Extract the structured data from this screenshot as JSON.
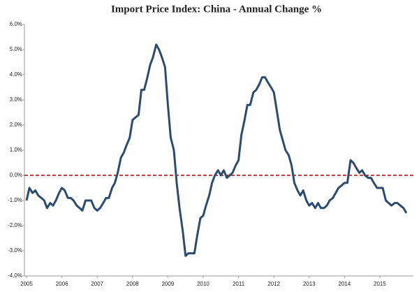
{
  "chart_data": {
    "type": "line",
    "title": "Import Price Index: China - Annual Change %",
    "x": [
      2005,
      2005.08,
      2005.17,
      2005.25,
      2005.33,
      2005.42,
      2005.5,
      2005.58,
      2005.67,
      2005.75,
      2005.83,
      2005.92,
      2006,
      2006.08,
      2006.17,
      2006.25,
      2006.33,
      2006.42,
      2006.5,
      2006.58,
      2006.67,
      2006.75,
      2006.83,
      2006.92,
      2007,
      2007.08,
      2007.17,
      2007.25,
      2007.33,
      2007.42,
      2007.5,
      2007.58,
      2007.67,
      2007.75,
      2007.83,
      2007.92,
      2008,
      2008.08,
      2008.17,
      2008.25,
      2008.33,
      2008.42,
      2008.5,
      2008.58,
      2008.67,
      2008.75,
      2008.83,
      2008.92,
      2009,
      2009.08,
      2009.17,
      2009.25,
      2009.33,
      2009.42,
      2009.5,
      2009.58,
      2009.67,
      2009.75,
      2009.83,
      2009.92,
      2010,
      2010.08,
      2010.17,
      2010.25,
      2010.33,
      2010.42,
      2010.5,
      2010.58,
      2010.67,
      2010.75,
      2010.83,
      2010.92,
      2011,
      2011.08,
      2011.17,
      2011.25,
      2011.33,
      2011.42,
      2011.5,
      2011.58,
      2011.67,
      2011.75,
      2011.83,
      2011.92,
      2012,
      2012.08,
      2012.17,
      2012.25,
      2012.33,
      2012.42,
      2012.5,
      2012.58,
      2012.67,
      2012.75,
      2012.83,
      2012.92,
      2013,
      2013.08,
      2013.17,
      2013.25,
      2013.33,
      2013.42,
      2013.5,
      2013.58,
      2013.67,
      2013.75,
      2013.83,
      2013.92,
      2014,
      2014.08,
      2014.17,
      2014.25,
      2014.33,
      2014.42,
      2014.5,
      2014.58,
      2014.67,
      2014.75,
      2014.83,
      2014.92,
      2015,
      2015.08,
      2015.17,
      2015.25,
      2015.33,
      2015.42,
      2015.5,
      2015.58,
      2015.67,
      2015.75
    ],
    "series": [
      {
        "name": "Import Price Index: China",
        "color": "#2b4b6f",
        "values": [
          -1.0,
          -0.5,
          -0.7,
          -0.6,
          -0.8,
          -0.9,
          -1.0,
          -1.3,
          -1.1,
          -1.2,
          -1.0,
          -0.7,
          -0.5,
          -0.6,
          -0.9,
          -0.9,
          -1.0,
          -1.2,
          -1.3,
          -1.4,
          -1.0,
          -1.0,
          -1.0,
          -1.3,
          -1.4,
          -1.3,
          -1.1,
          -0.9,
          -0.9,
          -0.5,
          -0.3,
          0.1,
          0.7,
          0.9,
          1.2,
          1.5,
          2.2,
          2.3,
          2.4,
          3.4,
          3.4,
          3.9,
          4.4,
          4.7,
          5.2,
          5.0,
          4.7,
          4.3,
          2.8,
          1.5,
          1.0,
          -0.3,
          -1.3,
          -2.2,
          -3.2,
          -3.1,
          -3.1,
          -3.1,
          -2.4,
          -1.7,
          -1.6,
          -1.2,
          -0.8,
          -0.3,
          0.0,
          0.2,
          0.0,
          0.2,
          -0.1,
          0.0,
          0.1,
          0.4,
          0.6,
          1.6,
          2.2,
          2.8,
          2.8,
          3.3,
          3.4,
          3.6,
          3.9,
          3.9,
          3.7,
          3.5,
          3.3,
          2.6,
          1.8,
          1.4,
          1.0,
          0.8,
          0.4,
          -0.3,
          -0.6,
          -0.8,
          -0.6,
          -1.0,
          -1.2,
          -1.1,
          -1.3,
          -1.1,
          -1.3,
          -1.3,
          -1.2,
          -1.0,
          -0.9,
          -0.7,
          -0.5,
          -0.4,
          -0.3,
          -0.3,
          0.6,
          0.5,
          0.3,
          0.1,
          0.2,
          0.0,
          -0.1,
          -0.1,
          -0.3,
          -0.5,
          -0.5,
          -0.5,
          -1.0,
          -1.1,
          -1.2,
          -1.1,
          -1.1,
          -1.2,
          -1.3,
          -1.5
        ]
      }
    ],
    "xlim": [
      2004.94,
      2015.95
    ],
    "xticks": [
      2005,
      2006,
      2007,
      2008,
      2009,
      2010,
      2011,
      2012,
      2013,
      2014,
      2015
    ],
    "ylim": [
      -4,
      6
    ],
    "yticks": [
      {
        "value": 6,
        "label": "6.0%"
      },
      {
        "value": 5,
        "label": "5.0%"
      },
      {
        "value": 4,
        "label": "4.0%"
      },
      {
        "value": 3,
        "label": "3.0%"
      },
      {
        "value": 2,
        "label": "2.0%"
      },
      {
        "value": 1,
        "label": "1.0%"
      },
      {
        "value": 0,
        "label": "0.0%"
      },
      {
        "value": -1,
        "label": "-1.0%"
      },
      {
        "value": -2,
        "label": "-2.0%"
      },
      {
        "value": -3,
        "label": "-3.0%"
      },
      {
        "value": -4,
        "label": "-4.0%"
      }
    ],
    "reference_line": {
      "value": 0,
      "color": "#c00000"
    }
  }
}
